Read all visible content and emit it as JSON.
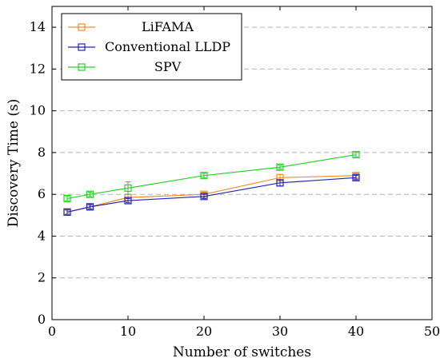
{
  "chart_data": {
    "type": "line",
    "title": "",
    "xlabel": "Number of switches",
    "ylabel": "Discovery Time (s)",
    "xlim": [
      0,
      50
    ],
    "ylim": [
      0,
      15
    ],
    "xticks": [
      0,
      10,
      20,
      30,
      40,
      50
    ],
    "yticks": [
      0,
      2,
      4,
      6,
      8,
      10,
      12,
      14
    ],
    "grid": "horizontal-dashed",
    "legend_position": "top-left",
    "series": [
      {
        "name": "LiFAMA",
        "color": "#f28c28",
        "marker": "square",
        "x": [
          2,
          5,
          10,
          20,
          30,
          40
        ],
        "y": [
          5.15,
          5.4,
          5.85,
          6.0,
          6.8,
          6.9
        ],
        "err": [
          0.1,
          0.1,
          0.15,
          0.1,
          0.15,
          0.1
        ]
      },
      {
        "name": "Conventional LLDP",
        "color": "#2323b4",
        "marker": "square",
        "x": [
          2,
          5,
          10,
          20,
          30,
          40
        ],
        "y": [
          5.15,
          5.4,
          5.7,
          5.9,
          6.55,
          6.8
        ],
        "err": [
          0.1,
          0.1,
          0.1,
          0.1,
          0.15,
          0.1
        ]
      },
      {
        "name": "SPV",
        "color": "#2ad12a",
        "marker": "square",
        "x": [
          2,
          5,
          10,
          20,
          30,
          40
        ],
        "y": [
          5.8,
          6.0,
          6.3,
          6.9,
          7.3,
          7.9
        ],
        "err": [
          0.1,
          0.1,
          0.3,
          0.1,
          0.1,
          0.1
        ]
      }
    ]
  }
}
